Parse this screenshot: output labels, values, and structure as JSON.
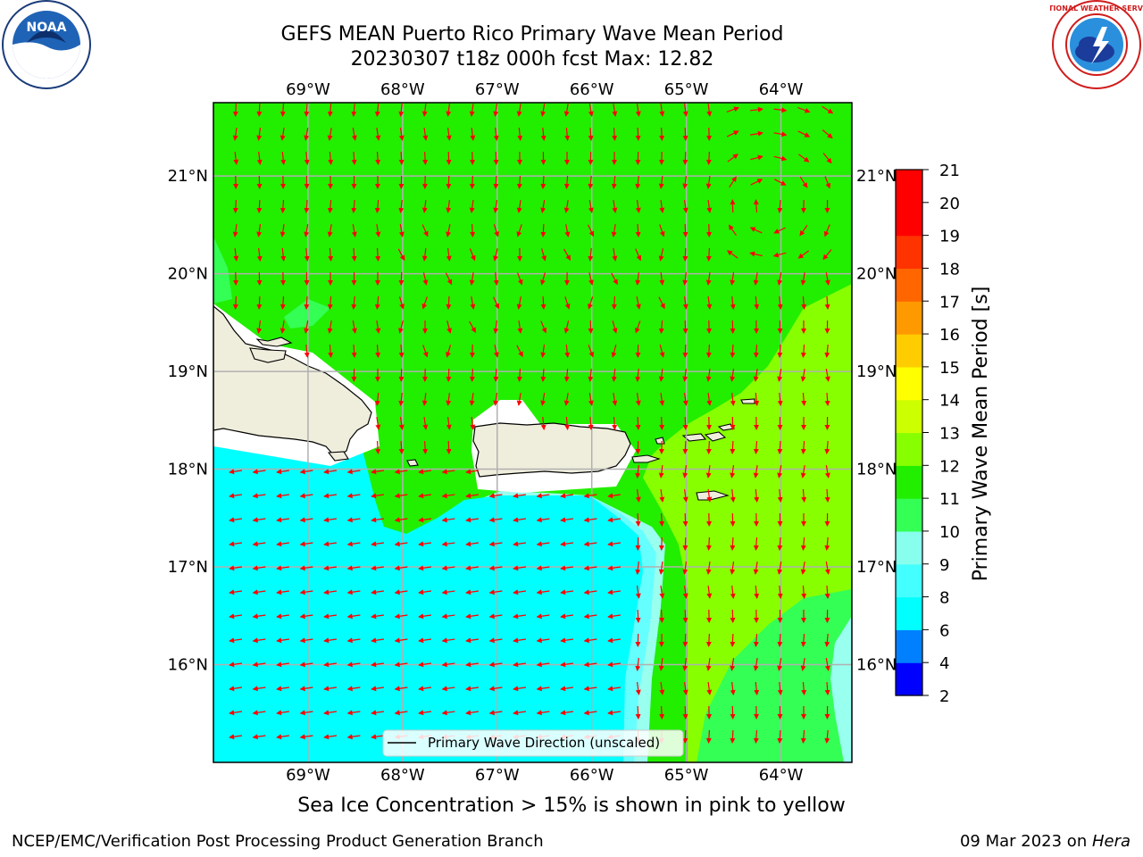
{
  "header": {
    "title_line1": "GEFS MEAN Puerto Rico Primary Wave Mean Period",
    "title_line2": "20230307 t18z 000h fcst   Max: 12.82"
  },
  "logos": {
    "left": "noaa-logo",
    "right": "nws-logo",
    "left_text": "NOAA",
    "right_text": "NATIONAL WEATHER SERVICE"
  },
  "map": {
    "lon_range": [
      -70.0,
      -63.25
    ],
    "lat_range": [
      15.0,
      21.75
    ],
    "lon_ticks": [
      "69°W",
      "68°W",
      "67°W",
      "66°W",
      "65°W",
      "64°W"
    ],
    "lon_values": [
      -69,
      -68,
      -67,
      -66,
      -65,
      -64
    ],
    "lat_ticks": [
      "21°N",
      "20°N",
      "19°N",
      "18°N",
      "17°N",
      "16°N"
    ],
    "lat_values": [
      21,
      20,
      19,
      18,
      17,
      16
    ],
    "grid": true,
    "land_color": "#efeddc",
    "arrow_color": "#ff0000",
    "legend_label": "Primary Wave Direction (unscaled)",
    "legend_position": "bottom-center"
  },
  "colorbar": {
    "label": "Primary Wave Mean Period [s]",
    "ticks": [
      "2",
      "4",
      "6",
      "8",
      "9",
      "10",
      "11",
      "12",
      "13",
      "14",
      "15",
      "16",
      "17",
      "18",
      "19",
      "20",
      "21"
    ],
    "colors": [
      "#0000ff",
      "#0080ff",
      "#00ffff",
      "#44ffff",
      "#88ffee",
      "#33ff55",
      "#22ee00",
      "#88ff00",
      "#ccff00",
      "#ffff00",
      "#ffcc00",
      "#ff9900",
      "#ff6600",
      "#ff3300",
      "#ff0000",
      "#ff0000"
    ]
  },
  "field_colors": {
    "cyan": "#00ffff",
    "light_cyan": "#66ffff",
    "pale_cyan": "#99ffee",
    "green": "#22ee00",
    "green_light": "#33ff55",
    "yellow_green": "#88ff00"
  },
  "notes": {
    "ice": "Sea Ice Concentration > 15% is shown in pink to yellow"
  },
  "footer": {
    "left": "NCEP/EMC/Verification Post Processing Product Generation Branch",
    "right_date": "09 Mar 2023 on ",
    "right_machine": "Hera"
  }
}
